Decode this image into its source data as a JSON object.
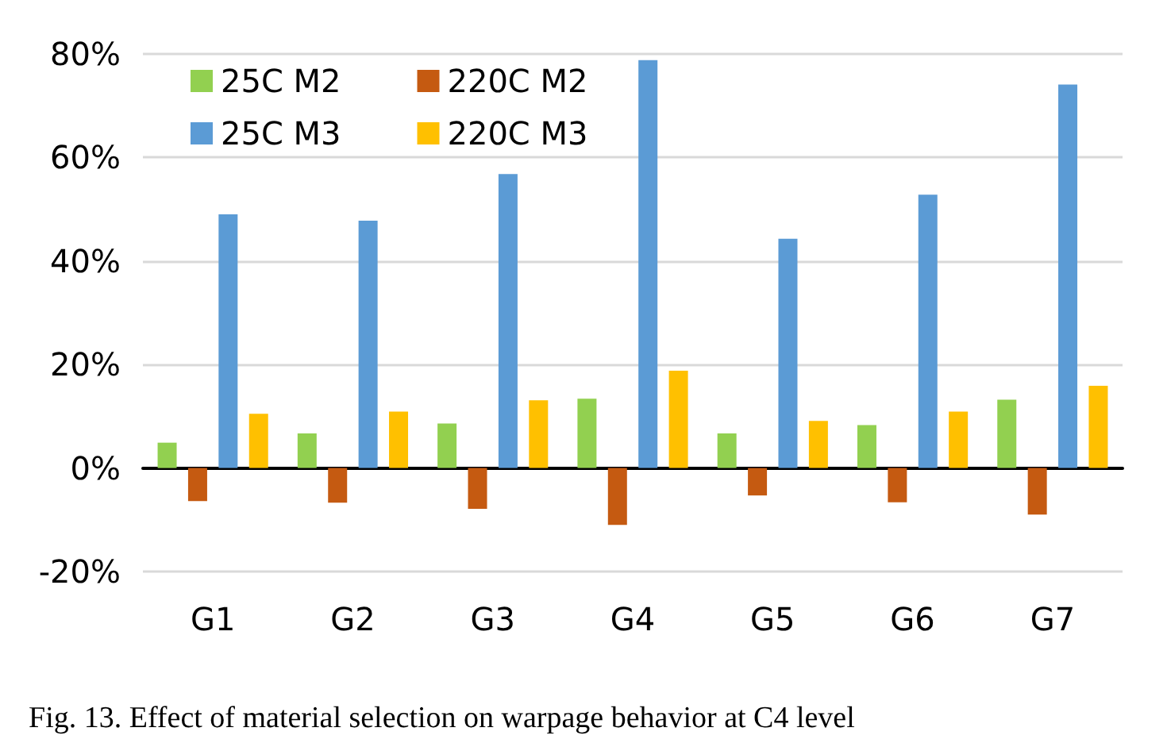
{
  "chart_data": {
    "type": "bar",
    "categories": [
      "G1",
      "G2",
      "G3",
      "G4",
      "G5",
      "G6",
      "G7"
    ],
    "series": [
      {
        "name": "25C M2",
        "color": "#92d050",
        "values": [
          4.9,
          6.7,
          8.6,
          13.4,
          6.7,
          8.3,
          13.2
        ]
      },
      {
        "name": "220C M2",
        "color": "#c55a11",
        "values": [
          -6.4,
          -6.7,
          -7.9,
          -11,
          -5.3,
          -6.6,
          -9.0
        ]
      },
      {
        "name": "25C M3",
        "color": "#5b9bd5",
        "values": [
          49,
          47.8,
          56.8,
          78.8,
          44.3,
          52.8,
          74.1
        ]
      },
      {
        "name": "220C M3",
        "color": "#ffc000",
        "values": [
          10.5,
          10.9,
          13.1,
          18.8,
          9.1,
          10.9,
          15.9
        ]
      }
    ],
    "ylim": [
      -20,
      80
    ],
    "yticks": [
      {
        "value": -20,
        "label": "-20%"
      },
      {
        "value": 0,
        "label": "0%"
      },
      {
        "value": 20,
        "label": "20%"
      },
      {
        "value": 40,
        "label": "40%"
      },
      {
        "value": 60,
        "label": "60%"
      },
      {
        "value": 80,
        "label": "80%"
      }
    ],
    "grid": "y",
    "legend": "top left",
    "annotations": [
      "Fig. 13. Effect of material selection on warpage behavior at C4 level"
    ]
  }
}
